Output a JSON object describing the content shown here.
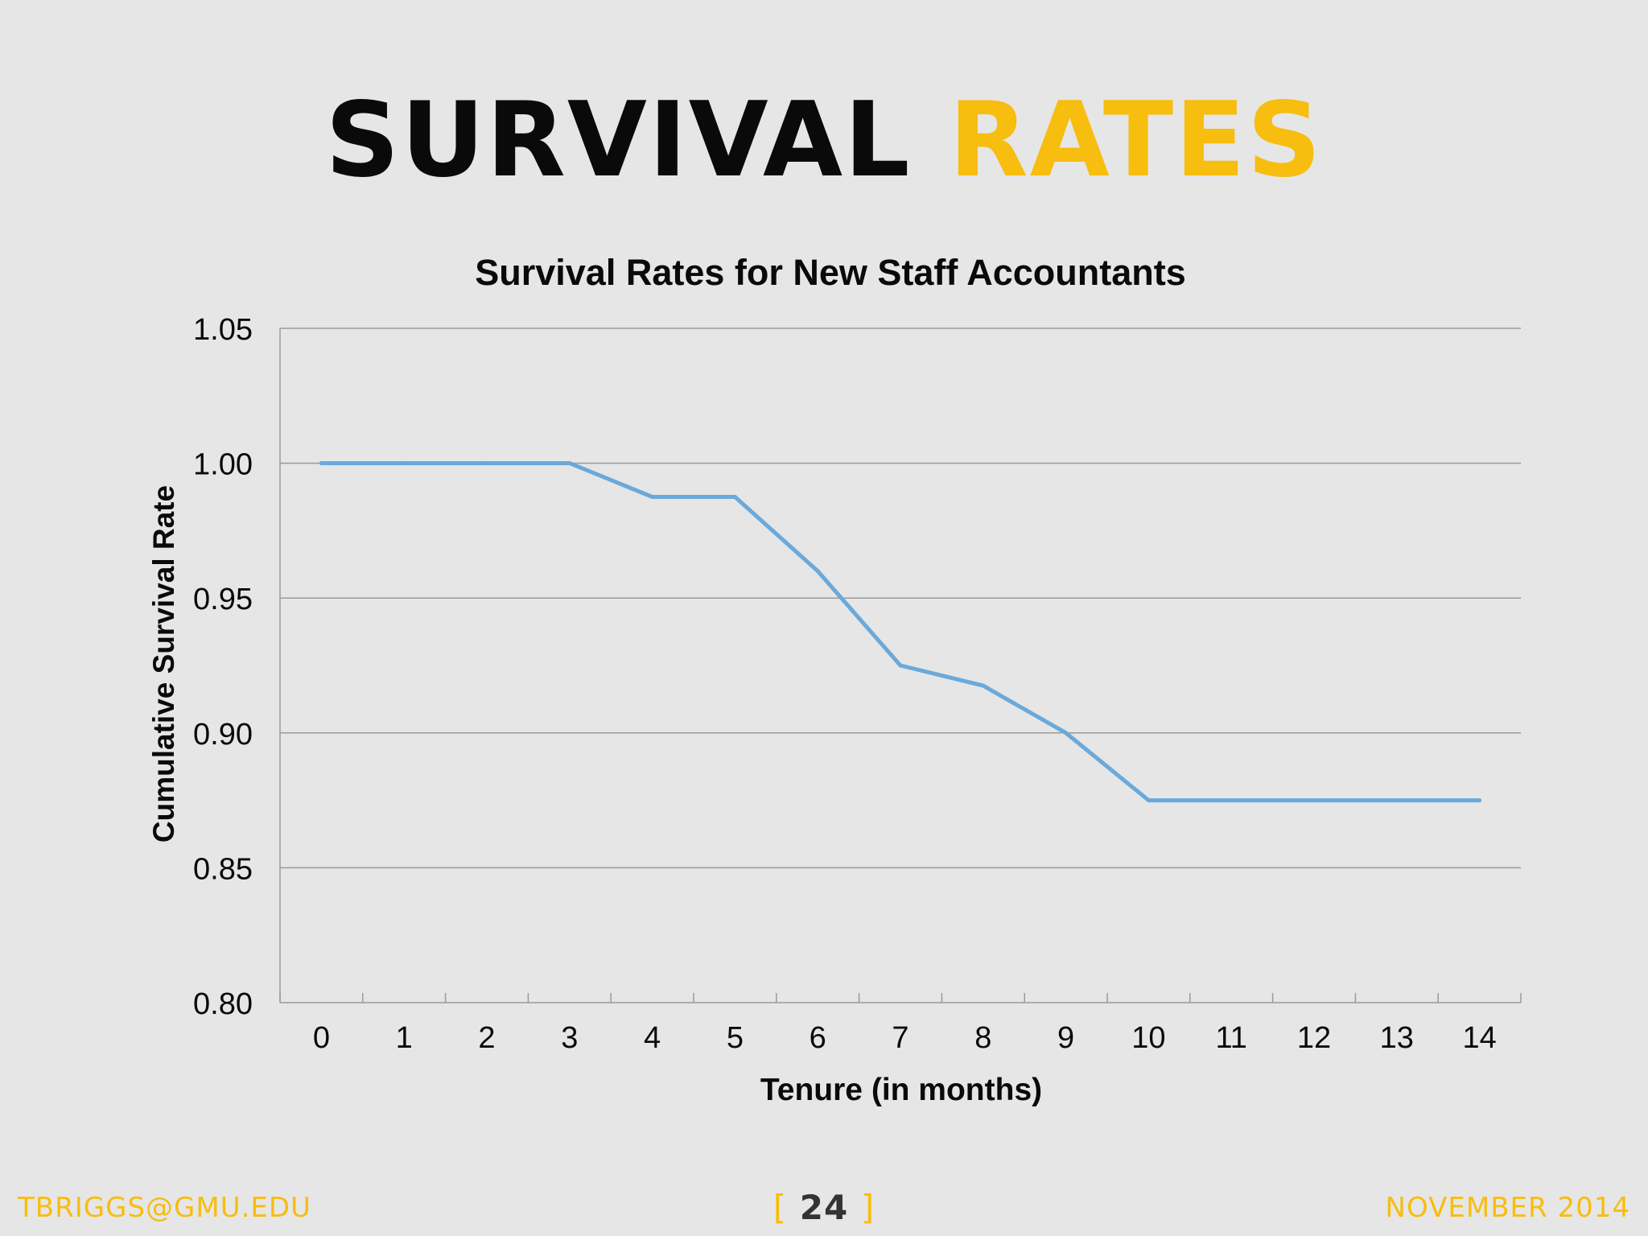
{
  "slide": {
    "title_part1": "SURVIVAL",
    "title_part2": "RATES",
    "footer_email": "TBRIGGS@GMU.EDU",
    "page_open": "[",
    "page_number": "24",
    "page_close": "]",
    "footer_date": "NOVEMBER 2014"
  },
  "colors": {
    "accent": "#f7bd0f",
    "line": "#6aa9da",
    "grid": "#9a9a9a",
    "background": "#e6e6e6"
  },
  "chart_data": {
    "type": "line",
    "title": "Survival Rates for New Staff Accountants",
    "xlabel": "Tenure (in months)",
    "ylabel": "Cumulative Survival Rate",
    "x": [
      0,
      1,
      2,
      3,
      4,
      5,
      6,
      7,
      8,
      9,
      10,
      11,
      12,
      13,
      14
    ],
    "x_tick_labels": [
      "0",
      "1",
      "2",
      "3",
      "4",
      "5",
      "6",
      "7",
      "8",
      "9",
      "10",
      "11",
      "12",
      "13",
      "14"
    ],
    "series": [
      {
        "values": [
          1.0,
          1.0,
          1.0,
          1.0,
          0.9875,
          0.9875,
          0.96,
          0.925,
          0.9175,
          0.9,
          0.875,
          0.875,
          0.875,
          0.875,
          0.875
        ]
      }
    ],
    "ylim": [
      0.8,
      1.05
    ],
    "y_ticks": [
      0.8,
      0.85,
      0.9,
      0.95,
      1.0,
      1.05
    ],
    "y_tick_labels": [
      "0.80",
      "0.85",
      "0.90",
      "0.95",
      "1.00",
      "1.05"
    ],
    "grid": true,
    "legend": "none"
  }
}
